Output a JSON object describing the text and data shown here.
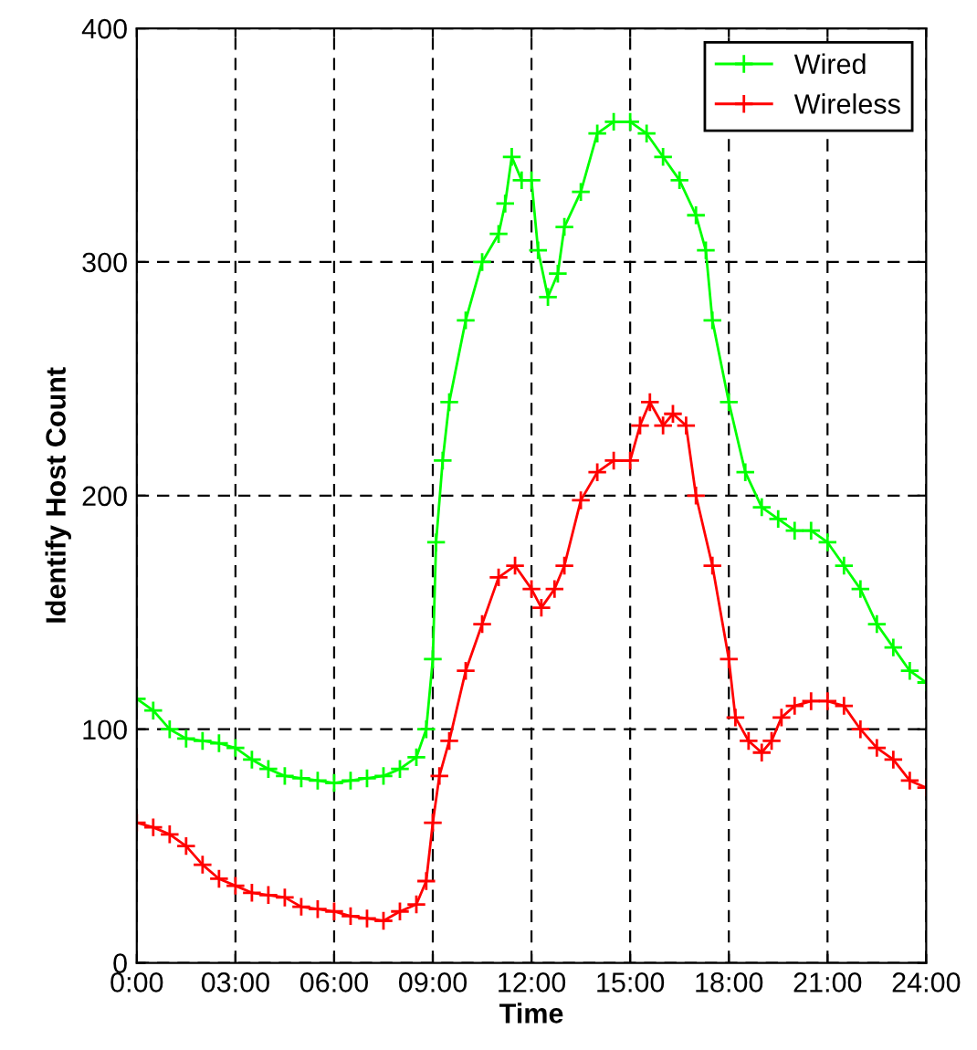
{
  "chart_data": {
    "type": "line",
    "xlabel": "Time",
    "ylabel": "Identify Host Count",
    "xlim": [
      0,
      24
    ],
    "ylim": [
      0,
      400
    ],
    "xticks": [
      {
        "value": 0,
        "label": "0:00"
      },
      {
        "value": 3,
        "label": "03:00"
      },
      {
        "value": 6,
        "label": "06:00"
      },
      {
        "value": 9,
        "label": "09:00"
      },
      {
        "value": 12,
        "label": "12:00"
      },
      {
        "value": 15,
        "label": "15:00"
      },
      {
        "value": 18,
        "label": "18:00"
      },
      {
        "value": 21,
        "label": "21:00"
      },
      {
        "value": 24,
        "label": "24:00"
      }
    ],
    "yticks": [
      0,
      100,
      200,
      300,
      400
    ],
    "grid": true,
    "legend": "top right",
    "marker": "cross",
    "line_style": "solid",
    "series": [
      {
        "name": "Wired",
        "color": "#00ff00",
        "x": [
          0,
          0.5,
          1,
          1.5,
          2,
          2.5,
          3,
          3.5,
          4,
          4.5,
          5,
          5.5,
          6,
          6.5,
          7,
          7.5,
          8,
          8.5,
          8.8,
          9,
          9.1,
          9.3,
          9.5,
          10,
          10.5,
          11,
          11.2,
          11.4,
          11.7,
          12,
          12.2,
          12.5,
          12.8,
          13,
          13.5,
          14,
          14.5,
          15,
          15.5,
          16,
          16.5,
          17,
          17.3,
          17.5,
          18,
          18.5,
          19,
          19.5,
          20,
          20.5,
          21,
          21.5,
          22,
          22.5,
          23,
          23.5,
          24
        ],
        "values": [
          113,
          108,
          100,
          96,
          95,
          94,
          92,
          87,
          83,
          80,
          79,
          78,
          77,
          78,
          79,
          80,
          83,
          88,
          100,
          130,
          180,
          215,
          240,
          275,
          300,
          312,
          325,
          345,
          335,
          335,
          305,
          285,
          295,
          315,
          330,
          355,
          360,
          360,
          355,
          345,
          335,
          320,
          305,
          275,
          240,
          210,
          195,
          190,
          185,
          185,
          180,
          170,
          160,
          145,
          135,
          125,
          120
        ]
      },
      {
        "name": "Wireless",
        "color": "#ff0000",
        "x": [
          0,
          0.5,
          1,
          1.5,
          2,
          2.5,
          3,
          3.5,
          4,
          4.5,
          5,
          5.5,
          6,
          6.5,
          7,
          7.5,
          8,
          8.5,
          8.8,
          9,
          9.2,
          9.5,
          10,
          10.5,
          11,
          11.5,
          12,
          12.3,
          12.7,
          13,
          13.5,
          14,
          14.5,
          15,
          15.3,
          15.6,
          16,
          16.3,
          16.7,
          17,
          17.5,
          18,
          18.2,
          18.6,
          19,
          19.3,
          19.6,
          20,
          20.5,
          21,
          21.5,
          22,
          22.5,
          23,
          23.5,
          24
        ],
        "values": [
          60,
          58,
          55,
          50,
          42,
          36,
          33,
          30,
          29,
          28,
          24,
          23,
          22,
          20,
          19,
          18,
          22,
          25,
          35,
          60,
          80,
          95,
          125,
          145,
          165,
          170,
          160,
          152,
          160,
          170,
          198,
          210,
          215,
          215,
          230,
          240,
          230,
          235,
          230,
          200,
          170,
          130,
          105,
          95,
          90,
          95,
          105,
          110,
          112,
          112,
          110,
          100,
          92,
          87,
          78,
          75
        ]
      }
    ]
  }
}
